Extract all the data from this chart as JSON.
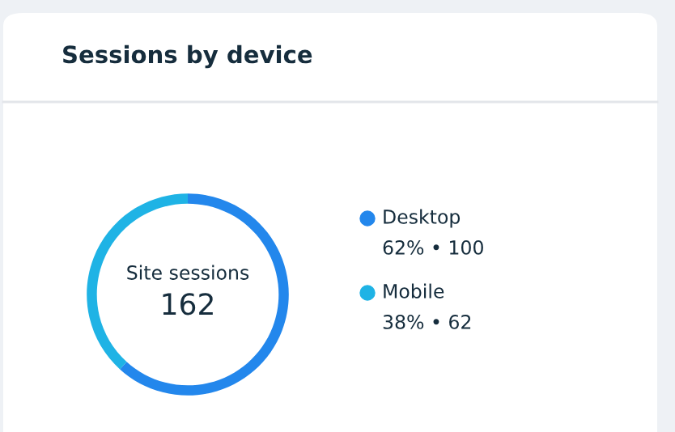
{
  "chart_data": {
    "type": "donut",
    "title": "Sessions by device",
    "categories": [
      "Desktop",
      "Mobile"
    ],
    "values": [
      100,
      62
    ],
    "colors": [
      "#2387ec",
      "#1fb3e5"
    ],
    "value_labels": [
      "62% • 100",
      "38% • 62"
    ],
    "annotations": [
      "Site sessions",
      "162"
    ],
    "legend": "right"
  }
}
